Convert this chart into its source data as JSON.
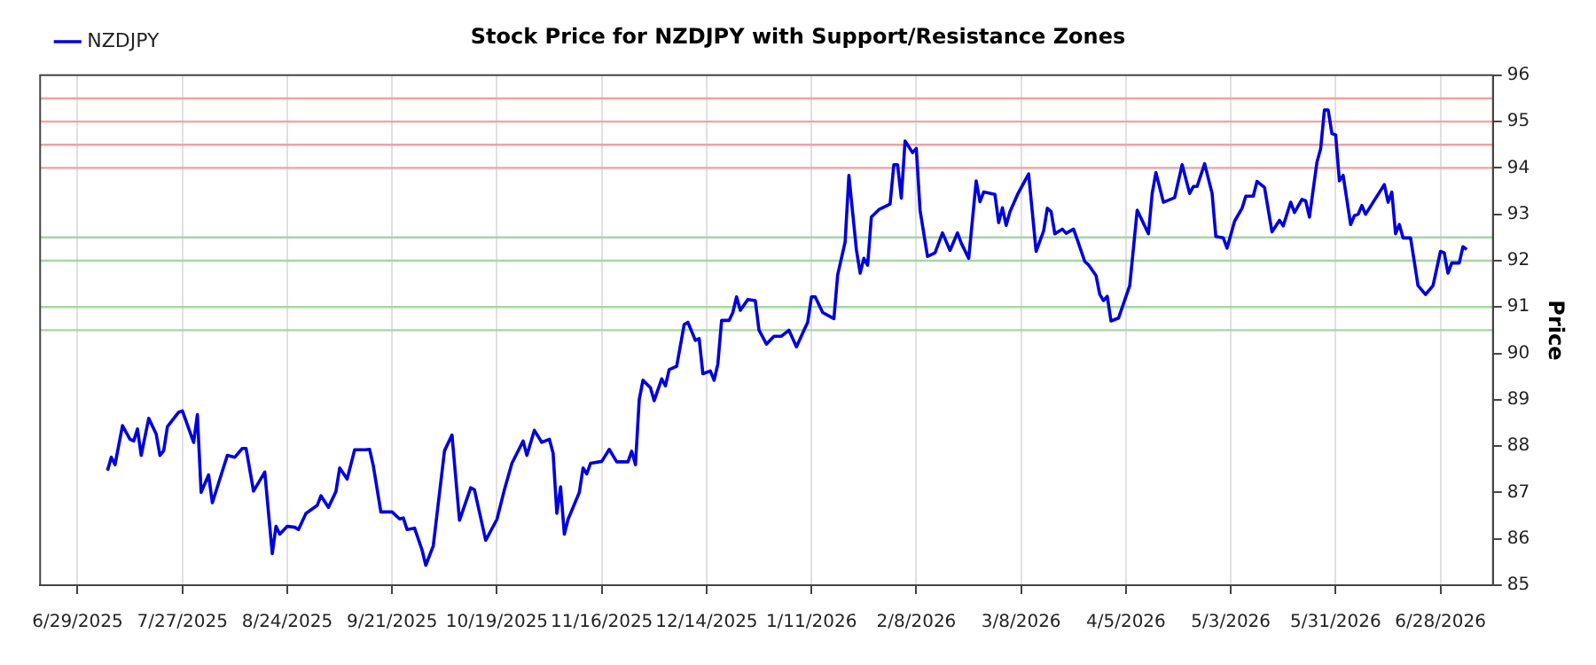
{
  "chart_data": {
    "type": "line",
    "title": "Stock Price for NZDJPY with Support/Resistance Zones",
    "ylabel": "Price",
    "xlim": [
      "2025-06-19",
      "2026-07-12"
    ],
    "xticks": [
      {
        "value": "2025-06-29",
        "label": "6/29/2025"
      },
      {
        "value": "2025-07-27",
        "label": "7/27/2025"
      },
      {
        "value": "2025-08-24",
        "label": "8/24/2025"
      },
      {
        "value": "2025-09-21",
        "label": "9/21/2025"
      },
      {
        "value": "2025-10-19",
        "label": "10/19/2025"
      },
      {
        "value": "2025-11-16",
        "label": "11/16/2025"
      },
      {
        "value": "2025-12-14",
        "label": "12/14/2025"
      },
      {
        "value": "2026-01-11",
        "label": "1/11/2026"
      },
      {
        "value": "2026-02-08",
        "label": "2/8/2026"
      },
      {
        "value": "2026-03-08",
        "label": "3/8/2026"
      },
      {
        "value": "2026-04-05",
        "label": "4/5/2026"
      },
      {
        "value": "2026-05-03",
        "label": "5/3/2026"
      },
      {
        "value": "2026-05-31",
        "label": "5/31/2026"
      },
      {
        "value": "2026-06-28",
        "label": "6/28/2026"
      }
    ],
    "ylim": [
      85,
      96
    ],
    "yticks": [
      85,
      86,
      87,
      88,
      89,
      90,
      91,
      92,
      93,
      94,
      95,
      96
    ],
    "grid": "x",
    "legend": "top left",
    "marker": "none",
    "line_style": "solid",
    "ref_lines": [
      {
        "axis": "y",
        "value": 94,
        "color": "#f2a0a0"
      },
      {
        "axis": "y",
        "value": 94.5,
        "color": "#f2a0a0"
      },
      {
        "axis": "y",
        "value": 95,
        "color": "#f2a0a0"
      },
      {
        "axis": "y",
        "value": 95.5,
        "color": "#f2a0a0"
      },
      {
        "axis": "y",
        "value": 90.5,
        "color": "#a6d6a6"
      },
      {
        "axis": "y",
        "value": 91,
        "color": "#a6d6a6"
      },
      {
        "axis": "y",
        "value": 92,
        "color": "#a6d6a6"
      },
      {
        "axis": "y",
        "value": 92.5,
        "color": "#a6d6a6"
      }
    ],
    "series": [
      {
        "name": "NZDJPY",
        "color": "#0000dd",
        "x": [
          "2025-07-07",
          "2025-07-08",
          "2025-07-09",
          "2025-07-11",
          "2025-07-13",
          "2025-07-14",
          "2025-07-15",
          "2025-07-16",
          "2025-07-18",
          "2025-07-20",
          "2025-07-21",
          "2025-07-22",
          "2025-07-23",
          "2025-07-26",
          "2025-07-27",
          "2025-07-30",
          "2025-07-31",
          "2025-08-01",
          "2025-08-03",
          "2025-08-04",
          "2025-08-08",
          "2025-08-10",
          "2025-08-12",
          "2025-08-13",
          "2025-08-15",
          "2025-08-18",
          "2025-08-20",
          "2025-08-21",
          "2025-08-22",
          "2025-08-24",
          "2025-08-26",
          "2025-08-27",
          "2025-08-29",
          "2025-09-01",
          "2025-09-02",
          "2025-09-04",
          "2025-09-06",
          "2025-09-07",
          "2025-09-09",
          "2025-09-11",
          "2025-09-14",
          "2025-09-15",
          "2025-09-16",
          "2025-09-18",
          "2025-09-21",
          "2025-09-23",
          "2025-09-24",
          "2025-09-25",
          "2025-09-27",
          "2025-09-29",
          "2025-09-30",
          "2025-10-02",
          "2025-10-05",
          "2025-10-07",
          "2025-10-09",
          "2025-10-12",
          "2025-10-13",
          "2025-10-16",
          "2025-10-19",
          "2025-10-21",
          "2025-10-23",
          "2025-10-26",
          "2025-10-27",
          "2025-10-29",
          "2025-10-31",
          "2025-11-02",
          "2025-11-03",
          "2025-11-04",
          "2025-11-05",
          "2025-11-06",
          "2025-11-07",
          "2025-11-10",
          "2025-11-11",
          "2025-11-12",
          "2025-11-13",
          "2025-11-16",
          "2025-11-18",
          "2025-11-20",
          "2025-11-23",
          "2025-11-24",
          "2025-11-25",
          "2025-11-26",
          "2025-11-27",
          "2025-11-29",
          "2025-11-30",
          "2025-12-02",
          "2025-12-03",
          "2025-12-04",
          "2025-12-06",
          "2025-12-08",
          "2025-12-09",
          "2025-12-11",
          "2025-12-12",
          "2025-12-13",
          "2025-12-15",
          "2025-12-16",
          "2025-12-17",
          "2025-12-18",
          "2025-12-20",
          "2025-12-21",
          "2025-12-22",
          "2025-12-23",
          "2025-12-25",
          "2025-12-27",
          "2025-12-28",
          "2025-12-30",
          "2026-01-01",
          "2026-01-03",
          "2026-01-05",
          "2026-01-07",
          "2026-01-09",
          "2026-01-10",
          "2026-01-11",
          "2026-01-12",
          "2026-01-14",
          "2026-01-17",
          "2026-01-18",
          "2026-01-20",
          "2026-01-21",
          "2026-01-23",
          "2026-01-24",
          "2026-01-25",
          "2026-01-26",
          "2026-01-27",
          "2026-01-29",
          "2026-02-01",
          "2026-02-02",
          "2026-02-03",
          "2026-02-04",
          "2026-02-05",
          "2026-02-07",
          "2026-02-08",
          "2026-02-09",
          "2026-02-11",
          "2026-02-13",
          "2026-02-15",
          "2026-02-17",
          "2026-02-19",
          "2026-02-20",
          "2026-02-22",
          "2026-02-24",
          "2026-02-25",
          "2026-02-26",
          "2026-03-01",
          "2026-03-02",
          "2026-03-03",
          "2026-03-04",
          "2026-03-05",
          "2026-03-07",
          "2026-03-10",
          "2026-03-12",
          "2026-03-14",
          "2026-03-15",
          "2026-03-16",
          "2026-03-17",
          "2026-03-19",
          "2026-03-20",
          "2026-03-22",
          "2026-03-23",
          "2026-03-25",
          "2026-03-26",
          "2026-03-28",
          "2026-03-29",
          "2026-03-30",
          "2026-03-31",
          "2026-04-01",
          "2026-04-03",
          "2026-04-06",
          "2026-04-08",
          "2026-04-11",
          "2026-04-12",
          "2026-04-13",
          "2026-04-15",
          "2026-04-18",
          "2026-04-20",
          "2026-04-22",
          "2026-04-23",
          "2026-04-24",
          "2026-04-26",
          "2026-04-28",
          "2026-04-29",
          "2026-05-01",
          "2026-05-02",
          "2026-05-04",
          "2026-05-06",
          "2026-05-07",
          "2026-05-09",
          "2026-05-10",
          "2026-05-12",
          "2026-05-14",
          "2026-05-16",
          "2026-05-17",
          "2026-05-19",
          "2026-05-20",
          "2026-05-22",
          "2026-05-23",
          "2026-05-24",
          "2026-05-26",
          "2026-05-27",
          "2026-05-28",
          "2026-05-29",
          "2026-05-30",
          "2026-05-31",
          "2026-06-01",
          "2026-06-02",
          "2026-06-04",
          "2026-06-05",
          "2026-06-06",
          "2026-06-07",
          "2026-06-08",
          "2026-06-10",
          "2026-06-13",
          "2026-06-14",
          "2026-06-15",
          "2026-06-16",
          "2026-06-17",
          "2026-06-18",
          "2026-06-20",
          "2026-06-21",
          "2026-06-22",
          "2026-06-24",
          "2026-06-26",
          "2026-06-28",
          "2026-06-29",
          "2026-06-30",
          "2026-07-01",
          "2026-07-03",
          "2026-07-04",
          "2026-07-05"
        ],
        "values": [
          87.47,
          87.76,
          87.6,
          88.44,
          88.15,
          88.11,
          88.37,
          87.8,
          88.6,
          88.26,
          87.8,
          87.9,
          88.42,
          88.73,
          88.76,
          88.08,
          88.68,
          87.0,
          87.38,
          86.78,
          87.8,
          87.76,
          87.95,
          87.95,
          87.03,
          87.44,
          85.68,
          86.27,
          86.1,
          86.27,
          86.25,
          86.2,
          86.55,
          86.72,
          86.93,
          86.68,
          87.02,
          87.53,
          87.29,
          87.92,
          87.92,
          87.93,
          87.57,
          86.58,
          86.58,
          86.43,
          86.45,
          86.2,
          86.23,
          85.76,
          85.43,
          85.85,
          87.9,
          88.24,
          86.4,
          87.1,
          87.06,
          85.97,
          86.42,
          87.06,
          87.63,
          88.11,
          87.8,
          88.34,
          88.08,
          88.15,
          87.85,
          86.55,
          87.12,
          86.1,
          86.42,
          87.0,
          87.53,
          87.4,
          87.63,
          87.67,
          87.93,
          87.66,
          87.66,
          87.89,
          87.6,
          89.0,
          89.42,
          89.26,
          88.98,
          89.45,
          89.3,
          89.65,
          89.72,
          90.62,
          90.67,
          90.28,
          90.32,
          89.56,
          89.62,
          89.42,
          89.77,
          90.71,
          90.71,
          90.88,
          91.22,
          90.93,
          91.16,
          91.14,
          90.5,
          90.2,
          90.37,
          90.37,
          90.5,
          90.14,
          90.5,
          90.67,
          91.22,
          91.22,
          90.88,
          90.75,
          91.69,
          92.41,
          93.84,
          92.24,
          91.73,
          92.05,
          91.9,
          92.94,
          93.1,
          93.22,
          94.07,
          94.07,
          93.35,
          94.58,
          94.33,
          94.42,
          93.09,
          92.09,
          92.17,
          92.6,
          92.22,
          92.6,
          92.38,
          92.05,
          93.72,
          93.27,
          93.48,
          93.43,
          92.82,
          93.14,
          92.76,
          93.05,
          93.42,
          93.87,
          92.2,
          92.64,
          93.13,
          93.06,
          92.58,
          92.68,
          92.59,
          92.68,
          92.45,
          91.98,
          91.91,
          91.68,
          91.27,
          91.14,
          91.23,
          90.7,
          90.76,
          91.46,
          93.09,
          92.58,
          93.45,
          93.9,
          93.26,
          93.36,
          94.07,
          93.45,
          93.6,
          93.6,
          94.09,
          93.45,
          92.52,
          92.49,
          92.27,
          92.85,
          93.13,
          93.39,
          93.39,
          93.71,
          93.58,
          92.62,
          92.87,
          92.75,
          93.26,
          93.04,
          93.32,
          93.29,
          92.94,
          94.12,
          94.42,
          95.25,
          95.25,
          94.74,
          94.71,
          93.72,
          93.84,
          92.78,
          92.97,
          93.0,
          93.19,
          93.0,
          93.26,
          93.64,
          93.26,
          93.48,
          92.58,
          92.78,
          92.49,
          92.49,
          91.98,
          91.46,
          91.27,
          91.46,
          92.2,
          92.17,
          91.73,
          91.95,
          91.95,
          92.3,
          92.24
        ]
      }
    ]
  }
}
